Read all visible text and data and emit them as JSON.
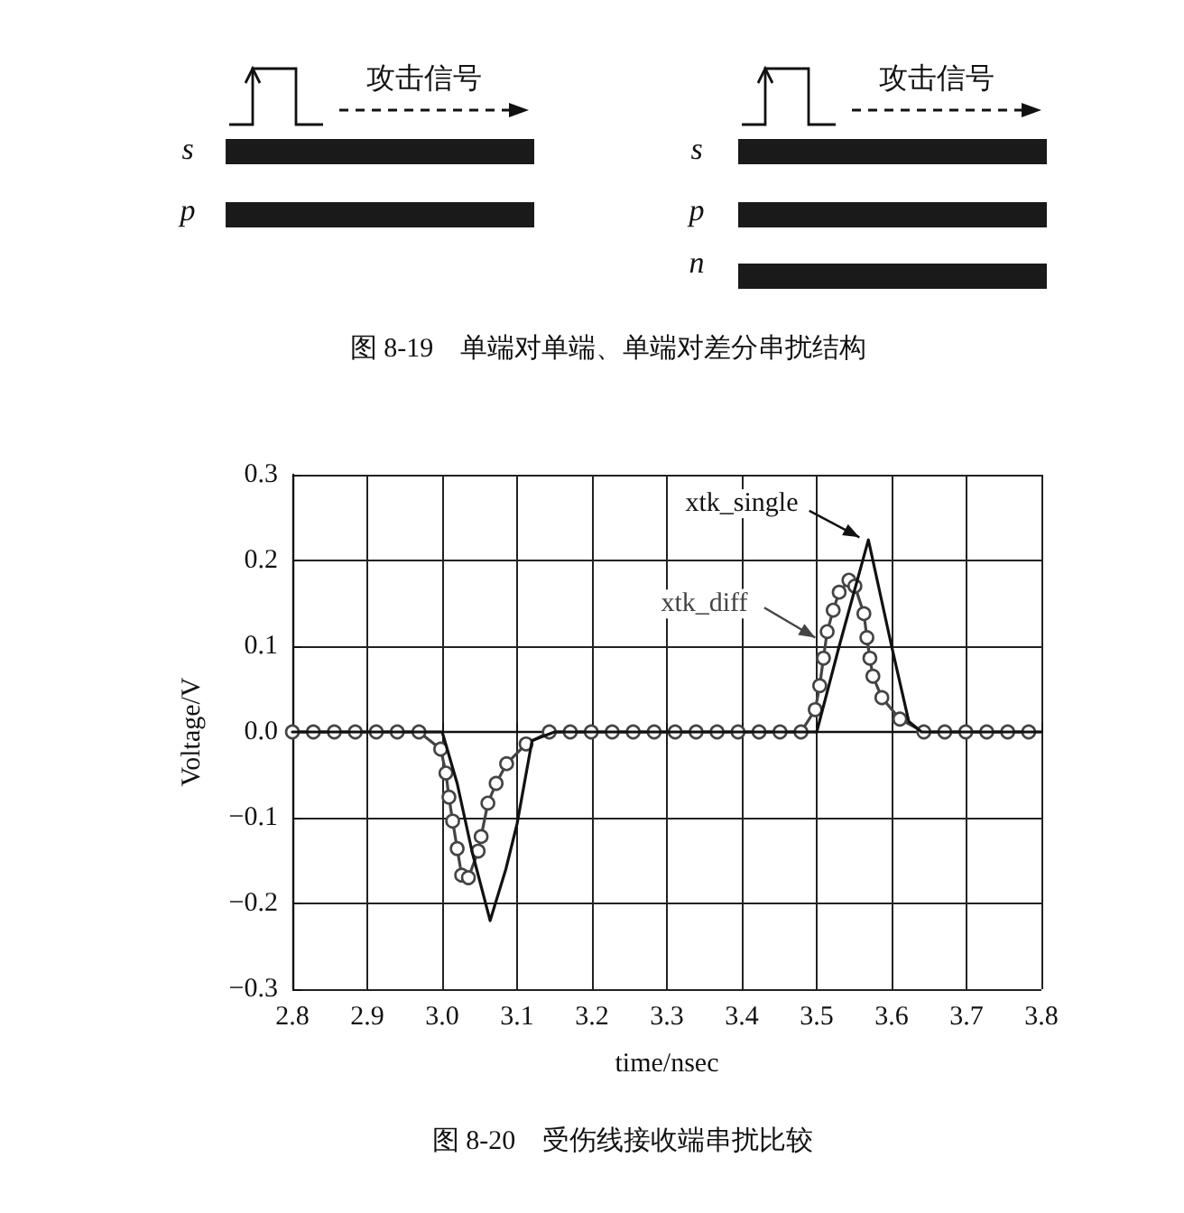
{
  "chart_data": {
    "type": "line",
    "xlabel": "time/nsec",
    "ylabel": "Voltage/V",
    "annotations": [
      "攻击信号",
      "s",
      "p",
      "攻击信号",
      "s",
      "p",
      "n",
      "图 8-19　单端对单端、单端对差分串扰结构",
      "图 8-20　受伤线接收端串扰比较"
    ],
    "xlim": [
      2.8,
      3.8
    ],
    "xticks": [
      2.8,
      2.9,
      {
        "value": 3,
        "label": "3.0"
      },
      3.1,
      3.2,
      3.3,
      3.4,
      3.5,
      3.6,
      3.7,
      3.8
    ],
    "ylim": [
      -0.3,
      0.3
    ],
    "yticks": [
      -0.3,
      -0.2,
      -0.1,
      {
        "value": 0,
        "label": "0.0"
      },
      0.1,
      0.2,
      0.3
    ],
    "grid": true,
    "series": [
      {
        "name": "xtk_single",
        "color": "#111111",
        "marker": "none",
        "line_style": "solid",
        "x": [
          2.8,
          3.0,
          3.02,
          3.04,
          3.064,
          3.085,
          3.1,
          3.12,
          3.15,
          3.5,
          3.53,
          3.569,
          3.6,
          3.623,
          3.64,
          3.8
        ],
        "values": [
          0,
          0,
          -0.06,
          -0.14,
          -0.22,
          -0.16,
          -0.107,
          -0.01,
          0,
          0,
          0.1,
          0.224,
          0.1,
          0.012,
          0,
          0
        ]
      },
      {
        "name": "xtk_diff",
        "color": "#444444",
        "marker": "circle",
        "line_style": "solid",
        "x": [
          2.8,
          2.828,
          2.856,
          2.884,
          2.912,
          2.94,
          2.969,
          2.998,
          3.005,
          3.009,
          3.014,
          3.02,
          3.026,
          3.035,
          3.048,
          3.052,
          3.061,
          3.072,
          3.086,
          3.112,
          3.143,
          3.171,
          3.199,
          3.227,
          3.255,
          3.283,
          3.311,
          3.339,
          3.367,
          3.395,
          3.423,
          3.451,
          3.479,
          3.498,
          3.504,
          3.509,
          3.514,
          3.522,
          3.53,
          3.543,
          3.551,
          3.563,
          3.567,
          3.571,
          3.575,
          3.587,
          3.611,
          3.643,
          3.671,
          3.699,
          3.727,
          3.755,
          3.783
        ],
        "values": [
          0,
          0,
          0,
          0,
          0,
          0,
          0,
          -0.02,
          -0.048,
          -0.076,
          -0.104,
          -0.136,
          -0.167,
          -0.17,
          -0.139,
          -0.122,
          -0.083,
          -0.06,
          -0.037,
          -0.014,
          0,
          0,
          0,
          0,
          0,
          0,
          0,
          0,
          0,
          0,
          0,
          0,
          0,
          0.026,
          0.054,
          0.086,
          0.117,
          0.142,
          0.163,
          0.177,
          0.17,
          0.138,
          0.11,
          0.086,
          0.065,
          0.04,
          0.015,
          0,
          0,
          0,
          0,
          0,
          0
        ]
      }
    ]
  }
}
